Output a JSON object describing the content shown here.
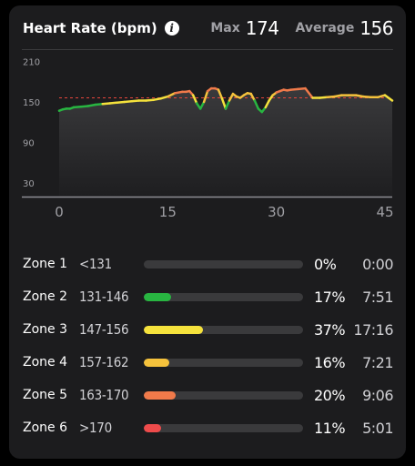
{
  "header": {
    "title": "Heart Rate (bpm)",
    "max_label": "Max",
    "max_value": "174",
    "avg_label": "Average",
    "avg_value": "156"
  },
  "chart_data": {
    "type": "line",
    "ylim": [
      10,
      220
    ],
    "xlim": [
      0,
      46
    ],
    "yticks": [
      "210",
      "150",
      "90",
      "30"
    ],
    "ytick_values": [
      210,
      150,
      90,
      30
    ],
    "xticks": [
      "0",
      "15",
      "30",
      "45"
    ],
    "xtick_values": [
      0,
      15,
      30,
      45
    ],
    "average_line": 156,
    "zone_colors": {
      "zone2": "#28b541",
      "zone3": "#f5e23c",
      "zone4": "#f5c23c",
      "zone5": "#f07a4a",
      "zone6": "#ee4b4b"
    },
    "series": [
      {
        "x": [
          0,
          0.5,
          1,
          1.5,
          2,
          3,
          4,
          5,
          6,
          7,
          8,
          9,
          10,
          11,
          12,
          13,
          14,
          15,
          16,
          17,
          17.5,
          18,
          18.5,
          19,
          19.5,
          20,
          20.5,
          21,
          21.5,
          22,
          22.5,
          23,
          23.5,
          24,
          24.5,
          25,
          25.5,
          26,
          26.5,
          27,
          27.5,
          28,
          28.5,
          29,
          29.5,
          30,
          30.5,
          31,
          31.5,
          32,
          33,
          34,
          35,
          36,
          37,
          38,
          39,
          40,
          41,
          42,
          43,
          44,
          45,
          46
        ],
        "values": [
          137,
          139,
          140,
          140,
          142,
          143,
          144,
          146,
          147,
          148,
          149,
          150,
          151,
          152,
          152,
          153,
          155,
          158,
          163,
          165,
          165,
          166,
          160,
          148,
          140,
          150,
          166,
          170,
          170,
          168,
          155,
          140,
          152,
          162,
          158,
          156,
          160,
          163,
          162,
          152,
          140,
          135,
          142,
          152,
          160,
          164,
          166,
          168,
          167,
          168,
          169,
          170,
          156,
          156,
          157,
          158,
          160,
          160,
          160,
          158,
          157,
          157,
          160,
          152
        ]
      }
    ]
  },
  "zones": [
    {
      "name": "Zone 1",
      "range": "<131",
      "pct": "0%",
      "fraction": 0.0,
      "time": "0:00",
      "color": "#3a3a3c"
    },
    {
      "name": "Zone 2",
      "range": "131-146",
      "pct": "17%",
      "fraction": 0.17,
      "time": "7:51",
      "color": "#28b541"
    },
    {
      "name": "Zone 3",
      "range": "147-156",
      "pct": "37%",
      "fraction": 0.37,
      "time": "17:16",
      "color": "#f5e23c"
    },
    {
      "name": "Zone 4",
      "range": "157-162",
      "pct": "16%",
      "fraction": 0.16,
      "time": "7:21",
      "color": "#f5c23c"
    },
    {
      "name": "Zone 5",
      "range": "163-170",
      "pct": "20%",
      "fraction": 0.2,
      "time": "9:06",
      "color": "#f07a4a"
    },
    {
      "name": "Zone 6",
      "range": ">170",
      "pct": "11%",
      "fraction": 0.11,
      "time": "5:01",
      "color": "#ee4b4b"
    }
  ]
}
